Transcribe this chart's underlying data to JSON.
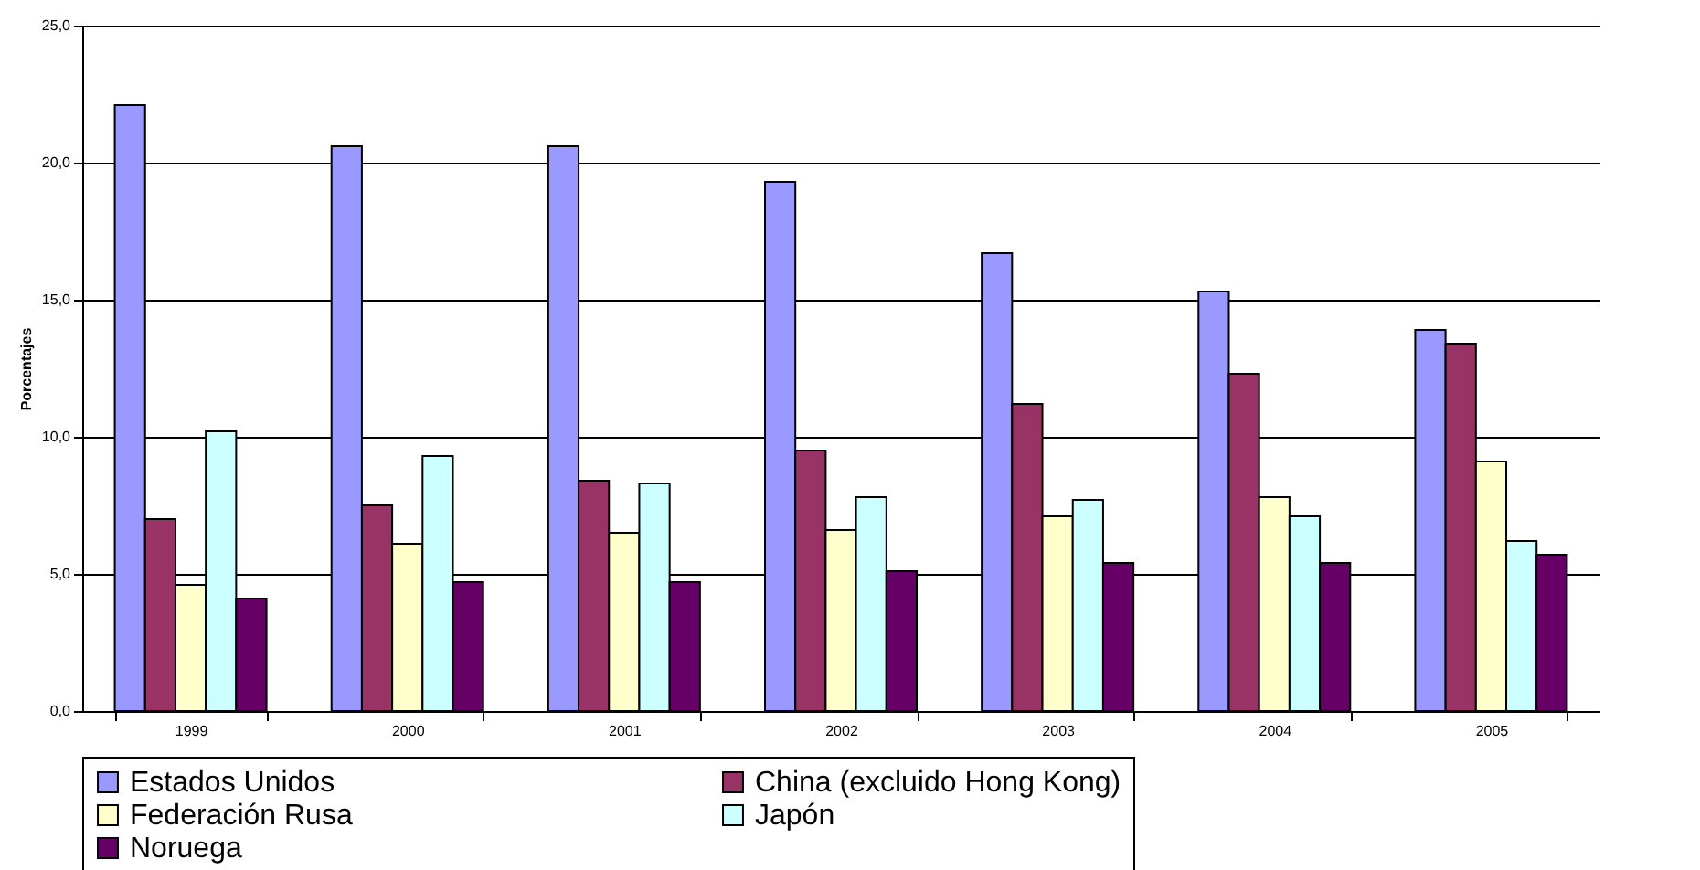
{
  "chart_data": {
    "type": "bar",
    "ylabel": "Porcentajes",
    "categories": [
      "1999",
      "2000",
      "2001",
      "2002",
      "2003",
      "2004",
      "2005"
    ],
    "series": [
      {
        "name": "Estados Unidos",
        "color": "#9999ff",
        "values": [
          22.1,
          20.6,
          20.6,
          19.3,
          16.7,
          15.3,
          13.9
        ]
      },
      {
        "name": "China (excluido Hong Kong)",
        "color": "#993366",
        "values": [
          7.0,
          7.5,
          8.4,
          9.5,
          11.2,
          12.3,
          13.4
        ]
      },
      {
        "name": "Federación Rusa",
        "color": "#ffffcc",
        "values": [
          4.6,
          6.1,
          6.5,
          6.6,
          7.1,
          7.8,
          9.1
        ]
      },
      {
        "name": "Japón",
        "color": "#ccffff",
        "values": [
          10.2,
          9.3,
          8.3,
          7.8,
          7.7,
          7.1,
          6.2
        ]
      },
      {
        "name": "Noruega",
        "color": "#660066",
        "values": [
          4.1,
          4.7,
          4.7,
          5.1,
          5.4,
          5.4,
          5.7
        ]
      }
    ],
    "ylim": [
      0,
      25
    ],
    "yticks": [
      {
        "value": 0,
        "label": "0,0"
      },
      {
        "value": 5,
        "label": "5,0"
      },
      {
        "value": 10,
        "label": "10,0"
      },
      {
        "value": 15,
        "label": "15,0"
      },
      {
        "value": 20,
        "label": "20,0"
      },
      {
        "value": 25,
        "label": "25,0"
      }
    ],
    "grid": "y",
    "legend": "bottom"
  }
}
